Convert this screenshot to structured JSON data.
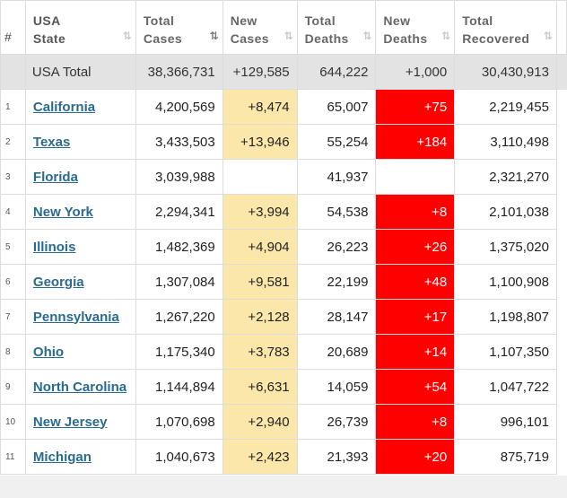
{
  "columns": {
    "rank": "#",
    "state": [
      "USA",
      "State"
    ],
    "total_cases": [
      "Total",
      "Cases"
    ],
    "new_cases": [
      "New",
      "Cases"
    ],
    "total_deaths": [
      "Total",
      "Deaths"
    ],
    "new_deaths": [
      "New",
      "Deaths"
    ],
    "total_recovered": [
      "Total",
      "Recovered"
    ]
  },
  "sort_icon": "⇅",
  "colors": {
    "new_cases_highlight": "#fbe7a9",
    "new_deaths_highlight": "#ff0000",
    "state_link": "#2a6a8e",
    "total_row_bg": "#e3e3e3"
  },
  "total": {
    "label": "USA Total",
    "total_cases": "38,366,731",
    "new_cases": "+129,585",
    "total_deaths": "644,222",
    "new_deaths": "+1,000",
    "total_recovered": "30,430,913"
  },
  "rows": [
    {
      "rank": "1",
      "state": "California",
      "total_cases": "4,200,569",
      "new_cases": "+8,474",
      "total_deaths": "65,007",
      "new_deaths": "+75",
      "total_recovered": "2,219,455"
    },
    {
      "rank": "2",
      "state": "Texas",
      "total_cases": "3,433,503",
      "new_cases": "+13,946",
      "total_deaths": "55,254",
      "new_deaths": "+184",
      "total_recovered": "3,110,498"
    },
    {
      "rank": "3",
      "state": "Florida",
      "total_cases": "3,039,988",
      "new_cases": "",
      "total_deaths": "41,937",
      "new_deaths": "",
      "total_recovered": "2,321,270"
    },
    {
      "rank": "4",
      "state": "New York",
      "total_cases": "2,294,341",
      "new_cases": "+3,994",
      "total_deaths": "54,538",
      "new_deaths": "+8",
      "total_recovered": "2,101,038"
    },
    {
      "rank": "5",
      "state": "Illinois",
      "total_cases": "1,482,369",
      "new_cases": "+4,904",
      "total_deaths": "26,223",
      "new_deaths": "+26",
      "total_recovered": "1,375,020"
    },
    {
      "rank": "6",
      "state": "Georgia",
      "total_cases": "1,307,084",
      "new_cases": "+9,581",
      "total_deaths": "22,199",
      "new_deaths": "+48",
      "total_recovered": "1,100,908"
    },
    {
      "rank": "7",
      "state": "Pennsylvania",
      "total_cases": "1,267,220",
      "new_cases": "+2,128",
      "total_deaths": "28,147",
      "new_deaths": "+17",
      "total_recovered": "1,198,807"
    },
    {
      "rank": "8",
      "state": "Ohio",
      "total_cases": "1,175,340",
      "new_cases": "+3,783",
      "total_deaths": "20,689",
      "new_deaths": "+14",
      "total_recovered": "1,107,350"
    },
    {
      "rank": "9",
      "state": "North Carolina",
      "total_cases": "1,144,894",
      "new_cases": "+6,631",
      "total_deaths": "14,059",
      "new_deaths": "+54",
      "total_recovered": "1,047,722"
    },
    {
      "rank": "10",
      "state": "New Jersey",
      "total_cases": "1,070,698",
      "new_cases": "+2,940",
      "total_deaths": "26,739",
      "new_deaths": "+8",
      "total_recovered": "996,101"
    },
    {
      "rank": "11",
      "state": "Michigan",
      "total_cases": "1,040,673",
      "new_cases": "+2,423",
      "total_deaths": "21,393",
      "new_deaths": "+20",
      "total_recovered": "875,719"
    }
  ]
}
